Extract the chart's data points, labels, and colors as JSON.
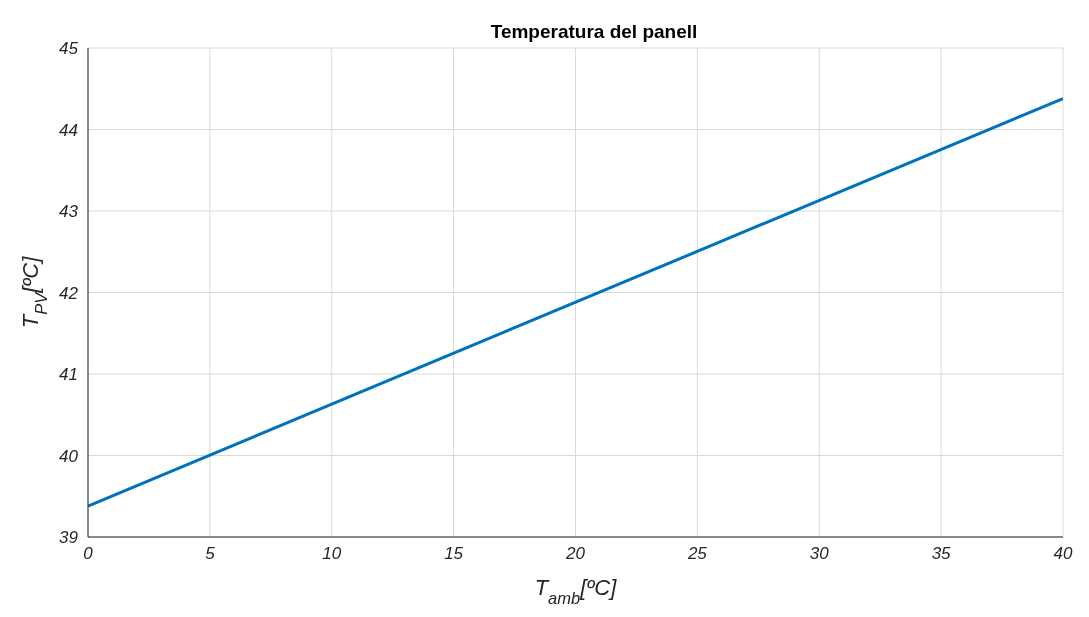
{
  "chart_data": {
    "type": "line",
    "title": "Temperatura del panell",
    "xlabel": "T$_{amb}$[ºC]",
    "ylabel": "T$_{PV}$[ºC]",
    "x": [
      0,
      40
    ],
    "series": [
      {
        "color": "#0072bd",
        "values": [
          39.38,
          44.38
        ]
      }
    ],
    "xlim": [
      0,
      40
    ],
    "xticks": [
      0,
      5,
      10,
      15,
      20,
      25,
      30,
      35,
      40
    ],
    "ylim": [
      39,
      45
    ],
    "yticks": [
      39,
      40,
      41,
      42,
      43,
      44,
      45
    ],
    "grid": true,
    "marker": "none",
    "line_style": "solid"
  }
}
